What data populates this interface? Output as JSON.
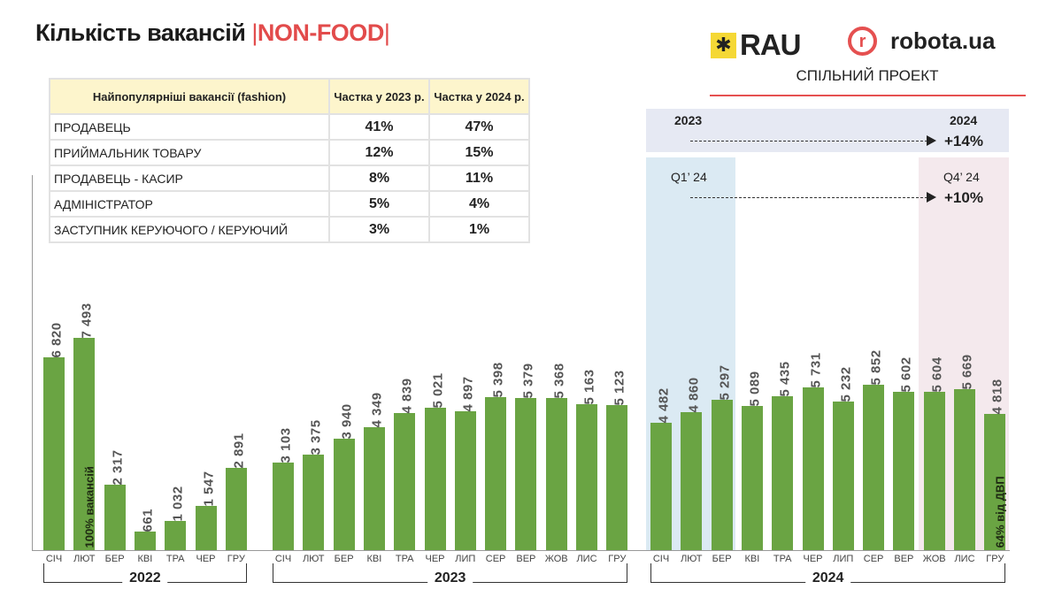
{
  "header": {
    "title": "Кількість вакансій",
    "sep": "|",
    "subtitle": "NON-FOOD",
    "logos": {
      "rau": "RAU",
      "robota": "robota.ua",
      "robota_mark": "r"
    },
    "joint_project": "СПІЛЬНИЙ ПРОЕКТ"
  },
  "table": {
    "headers": [
      "Найпопулярніші вакансії (fashion)",
      "Частка у 2023 р.",
      "Частка у 2024 р."
    ],
    "rows": [
      [
        "ПРОДАВЕЦЬ",
        "41%",
        "47%"
      ],
      [
        "ПРИЙМАЛЬНИК ТОВАРУ",
        "12%",
        "15%"
      ],
      [
        "ПРОДАВЕЦЬ - КАСИР",
        "8%",
        "11%"
      ],
      [
        "АДМІНІСТРАТОР",
        "5%",
        "4%"
      ],
      [
        "ЗАСТУПНИК КЕРУЮЧОГО / КЕРУЮЧИЙ",
        "3%",
        "1%"
      ]
    ]
  },
  "comparisons": {
    "year": {
      "from": "2023",
      "to": "2024",
      "change": "+14%"
    },
    "quarter": {
      "from": "Q1’ 24",
      "to": "Q4’ 24",
      "change": "+10%"
    }
  },
  "colors": {
    "bar": "#6aa443",
    "accent": "#e24b4b"
  },
  "chart_data": {
    "type": "bar",
    "title": "Кількість вакансій NON-FOOD",
    "ylim": [
      0,
      8000
    ],
    "groups": [
      {
        "year": "2022",
        "months": [
          "СІЧ",
          "ЛЮТ",
          "БЕР",
          "КВІ",
          "ТРА",
          "ЧЕР",
          "ГРУ"
        ],
        "values": [
          6820,
          7493,
          2317,
          661,
          1032,
          1547,
          2891
        ],
        "labels": [
          "6 820",
          "7 493",
          "2 317",
          "661",
          "1 032",
          "1 547",
          "2 891"
        ]
      },
      {
        "year": "2023",
        "months": [
          "СІЧ",
          "ЛЮТ",
          "БЕР",
          "КВІ",
          "ТРА",
          "ЧЕР",
          "ЛИП",
          "СЕР",
          "ВЕР",
          "ЖОВ",
          "ЛИС",
          "ГРУ"
        ],
        "values": [
          3103,
          3375,
          3940,
          4349,
          4839,
          5021,
          4897,
          5398,
          5379,
          5368,
          5163,
          5123
        ],
        "labels": [
          "3 103",
          "3 375",
          "3 940",
          "4 349",
          "4 839",
          "5 021",
          "4 897",
          "5 398",
          "5 379",
          "5 368",
          "5 163",
          "5 123"
        ]
      },
      {
        "year": "2024",
        "months": [
          "СІЧ",
          "ЛЮТ",
          "БЕР",
          "КВІ",
          "ТРА",
          "ЧЕР",
          "ЛИП",
          "СЕР",
          "ВЕР",
          "ЖОВ",
          "ЛИС",
          "ГРУ"
        ],
        "values": [
          4482,
          4860,
          5297,
          5089,
          5435,
          5731,
          5232,
          5852,
          5602,
          5604,
          5669,
          4818
        ],
        "labels": [
          "4 482",
          "4 860",
          "5 297",
          "5 089",
          "5 435",
          "5 731",
          "5 232",
          "5 852",
          "5 602",
          "5 604",
          "5 669",
          "4 818"
        ]
      }
    ],
    "annotations": {
      "baseline": "100% вакансій",
      "last": "64% від ДВП"
    }
  }
}
